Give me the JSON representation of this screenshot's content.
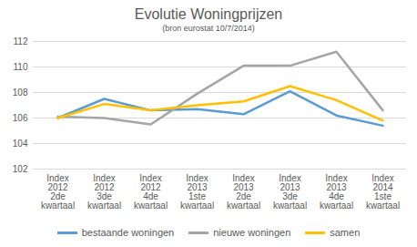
{
  "chart_data": {
    "type": "line",
    "title": "Evolutie Woningprijzen",
    "subtitle": "(bron eurostat 10/7/2014)",
    "categories": [
      "Index\n2012\n2de\nkwartaal",
      "Index\n2012\n3de\nkwartaal",
      "Index\n2012\n4de\nkwartaal",
      "Index\n2013\n1ste\nkwartaal",
      "Index\n2013\n2de\nkwartaal",
      "Index\n2013\n3de\nkwartaal",
      "Index\n2013\n4de\nkwartaal",
      "Index\n2014\n1ste\nkwartaal"
    ],
    "series": [
      {
        "name": "bestaande woningen",
        "color": "#5B9BD5",
        "values": [
          106.0,
          107.5,
          106.6,
          106.7,
          106.3,
          108.1,
          106.2,
          105.4
        ]
      },
      {
        "name": "nieuwe woningen",
        "color": "#A5A5A5",
        "values": [
          106.1,
          106.0,
          105.5,
          107.9,
          110.1,
          110.1,
          111.2,
          106.6
        ]
      },
      {
        "name": "samen",
        "color": "#FFC000",
        "values": [
          106.0,
          107.1,
          106.6,
          107.0,
          107.3,
          108.5,
          107.4,
          105.8
        ]
      }
    ],
    "ylim": [
      102,
      112
    ],
    "yticks": [
      102,
      104,
      106,
      108,
      110,
      112
    ],
    "grid": true,
    "legend": "bottom"
  }
}
